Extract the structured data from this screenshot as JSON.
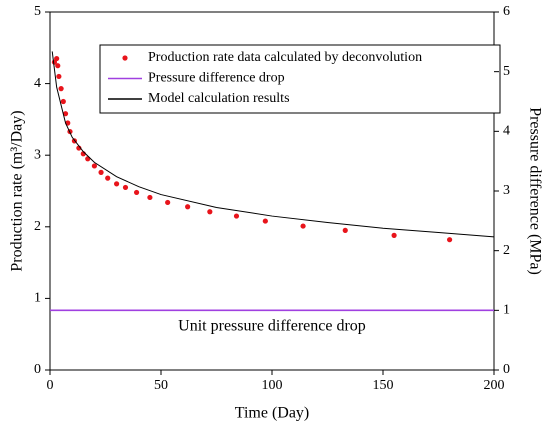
{
  "chart_data": {
    "type": "line",
    "xlabel": "Time (Day)",
    "ylabel": "Production rate (m³/Day)",
    "y2label": "Pressure difference (MPa)",
    "annotation": "Unit pressure difference drop",
    "xlim": [
      0,
      200
    ],
    "xticks": [
      0,
      50,
      100,
      150,
      200
    ],
    "ylim": [
      0,
      5
    ],
    "yticks": [
      0,
      1,
      2,
      3,
      4,
      5
    ],
    "y2lim": [
      0,
      6
    ],
    "y2ticks": [
      0,
      1,
      2,
      3,
      4,
      5,
      6
    ],
    "legend": "upper right",
    "series": [
      {
        "name": "Production rate data calculated by deconvolution",
        "type": "scatter",
        "color": "#e8141b",
        "x": [
          2,
          3,
          3.5,
          4,
          5,
          6,
          7,
          8,
          9,
          11,
          13,
          15,
          17,
          20,
          23,
          26,
          30,
          34,
          39,
          45,
          53,
          62,
          72,
          84,
          97,
          114,
          133,
          155,
          180
        ],
        "values": [
          4.3,
          4.35,
          4.25,
          4.1,
          3.93,
          3.75,
          3.58,
          3.45,
          3.33,
          3.2,
          3.1,
          3.02,
          2.95,
          2.85,
          2.76,
          2.68,
          2.6,
          2.55,
          2.48,
          2.41,
          2.34,
          2.28,
          2.21,
          2.15,
          2.08,
          2.01,
          1.95,
          1.88,
          1.82
        ]
      },
      {
        "name": "Pressure difference drop",
        "type": "line",
        "axis": "y2",
        "color": "#a040e0",
        "x": [
          0,
          200
        ],
        "values": [
          1,
          1
        ]
      },
      {
        "name": "Model calculation results",
        "type": "line",
        "color": "#000000",
        "x": [
          1,
          2,
          3,
          5,
          7,
          10,
          15,
          20,
          30,
          40,
          50,
          75,
          100,
          125,
          150,
          175,
          200
        ],
        "values": [
          4.45,
          4.2,
          3.95,
          3.7,
          3.45,
          3.25,
          3.05,
          2.9,
          2.7,
          2.56,
          2.45,
          2.27,
          2.15,
          2.06,
          1.98,
          1.92,
          1.86
        ]
      }
    ]
  }
}
